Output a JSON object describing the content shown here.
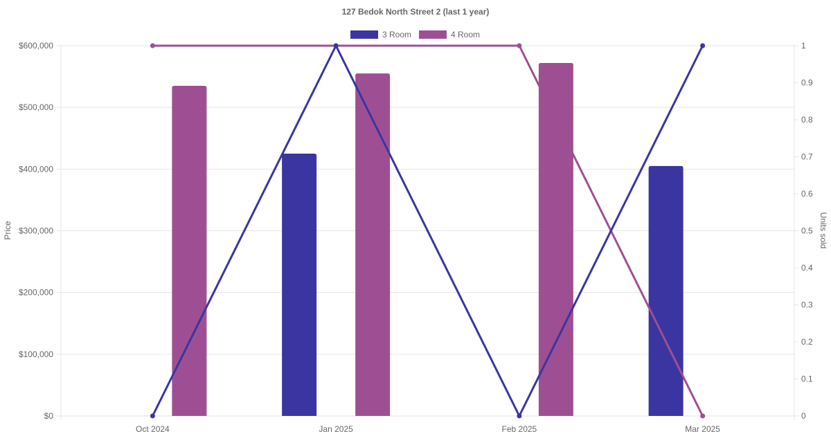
{
  "chart_data": {
    "type": "bar",
    "title": "127 Bedok North Street 2 (last 1 year)",
    "categories": [
      "Oct 2024",
      "Jan 2025",
      "Feb 2025",
      "Mar 2025"
    ],
    "legend": {
      "placement": "top-center"
    },
    "grid": true,
    "y_left": {
      "label": "Price",
      "ylim": [
        0,
        600000
      ],
      "ticks": [
        "$0",
        "$100,000",
        "$200,000",
        "$300,000",
        "$400,000",
        "$500,000",
        "$600,000"
      ],
      "tick_values": [
        0,
        100000,
        200000,
        300000,
        400000,
        500000,
        600000
      ]
    },
    "y_right": {
      "label": "Units sold",
      "ylim": [
        0,
        1
      ],
      "ticks": [
        "0",
        "0.1",
        "0.2",
        "0.3",
        "0.4",
        "0.5",
        "0.6",
        "0.7",
        "0.8",
        "0.9",
        "1"
      ],
      "tick_values": [
        0,
        0.1,
        0.2,
        0.3,
        0.4,
        0.5,
        0.6,
        0.7,
        0.8,
        0.9,
        1
      ]
    },
    "series": [
      {
        "name": "3 Room",
        "color": "#3a35a1",
        "price": [
          null,
          425000,
          null,
          405000
        ],
        "units": [
          0,
          1,
          0,
          1
        ]
      },
      {
        "name": "4 Room",
        "color": "#9e4f94",
        "price": [
          535000,
          555000,
          572000,
          null
        ],
        "units": [
          1,
          1,
          1,
          0
        ]
      }
    ]
  }
}
